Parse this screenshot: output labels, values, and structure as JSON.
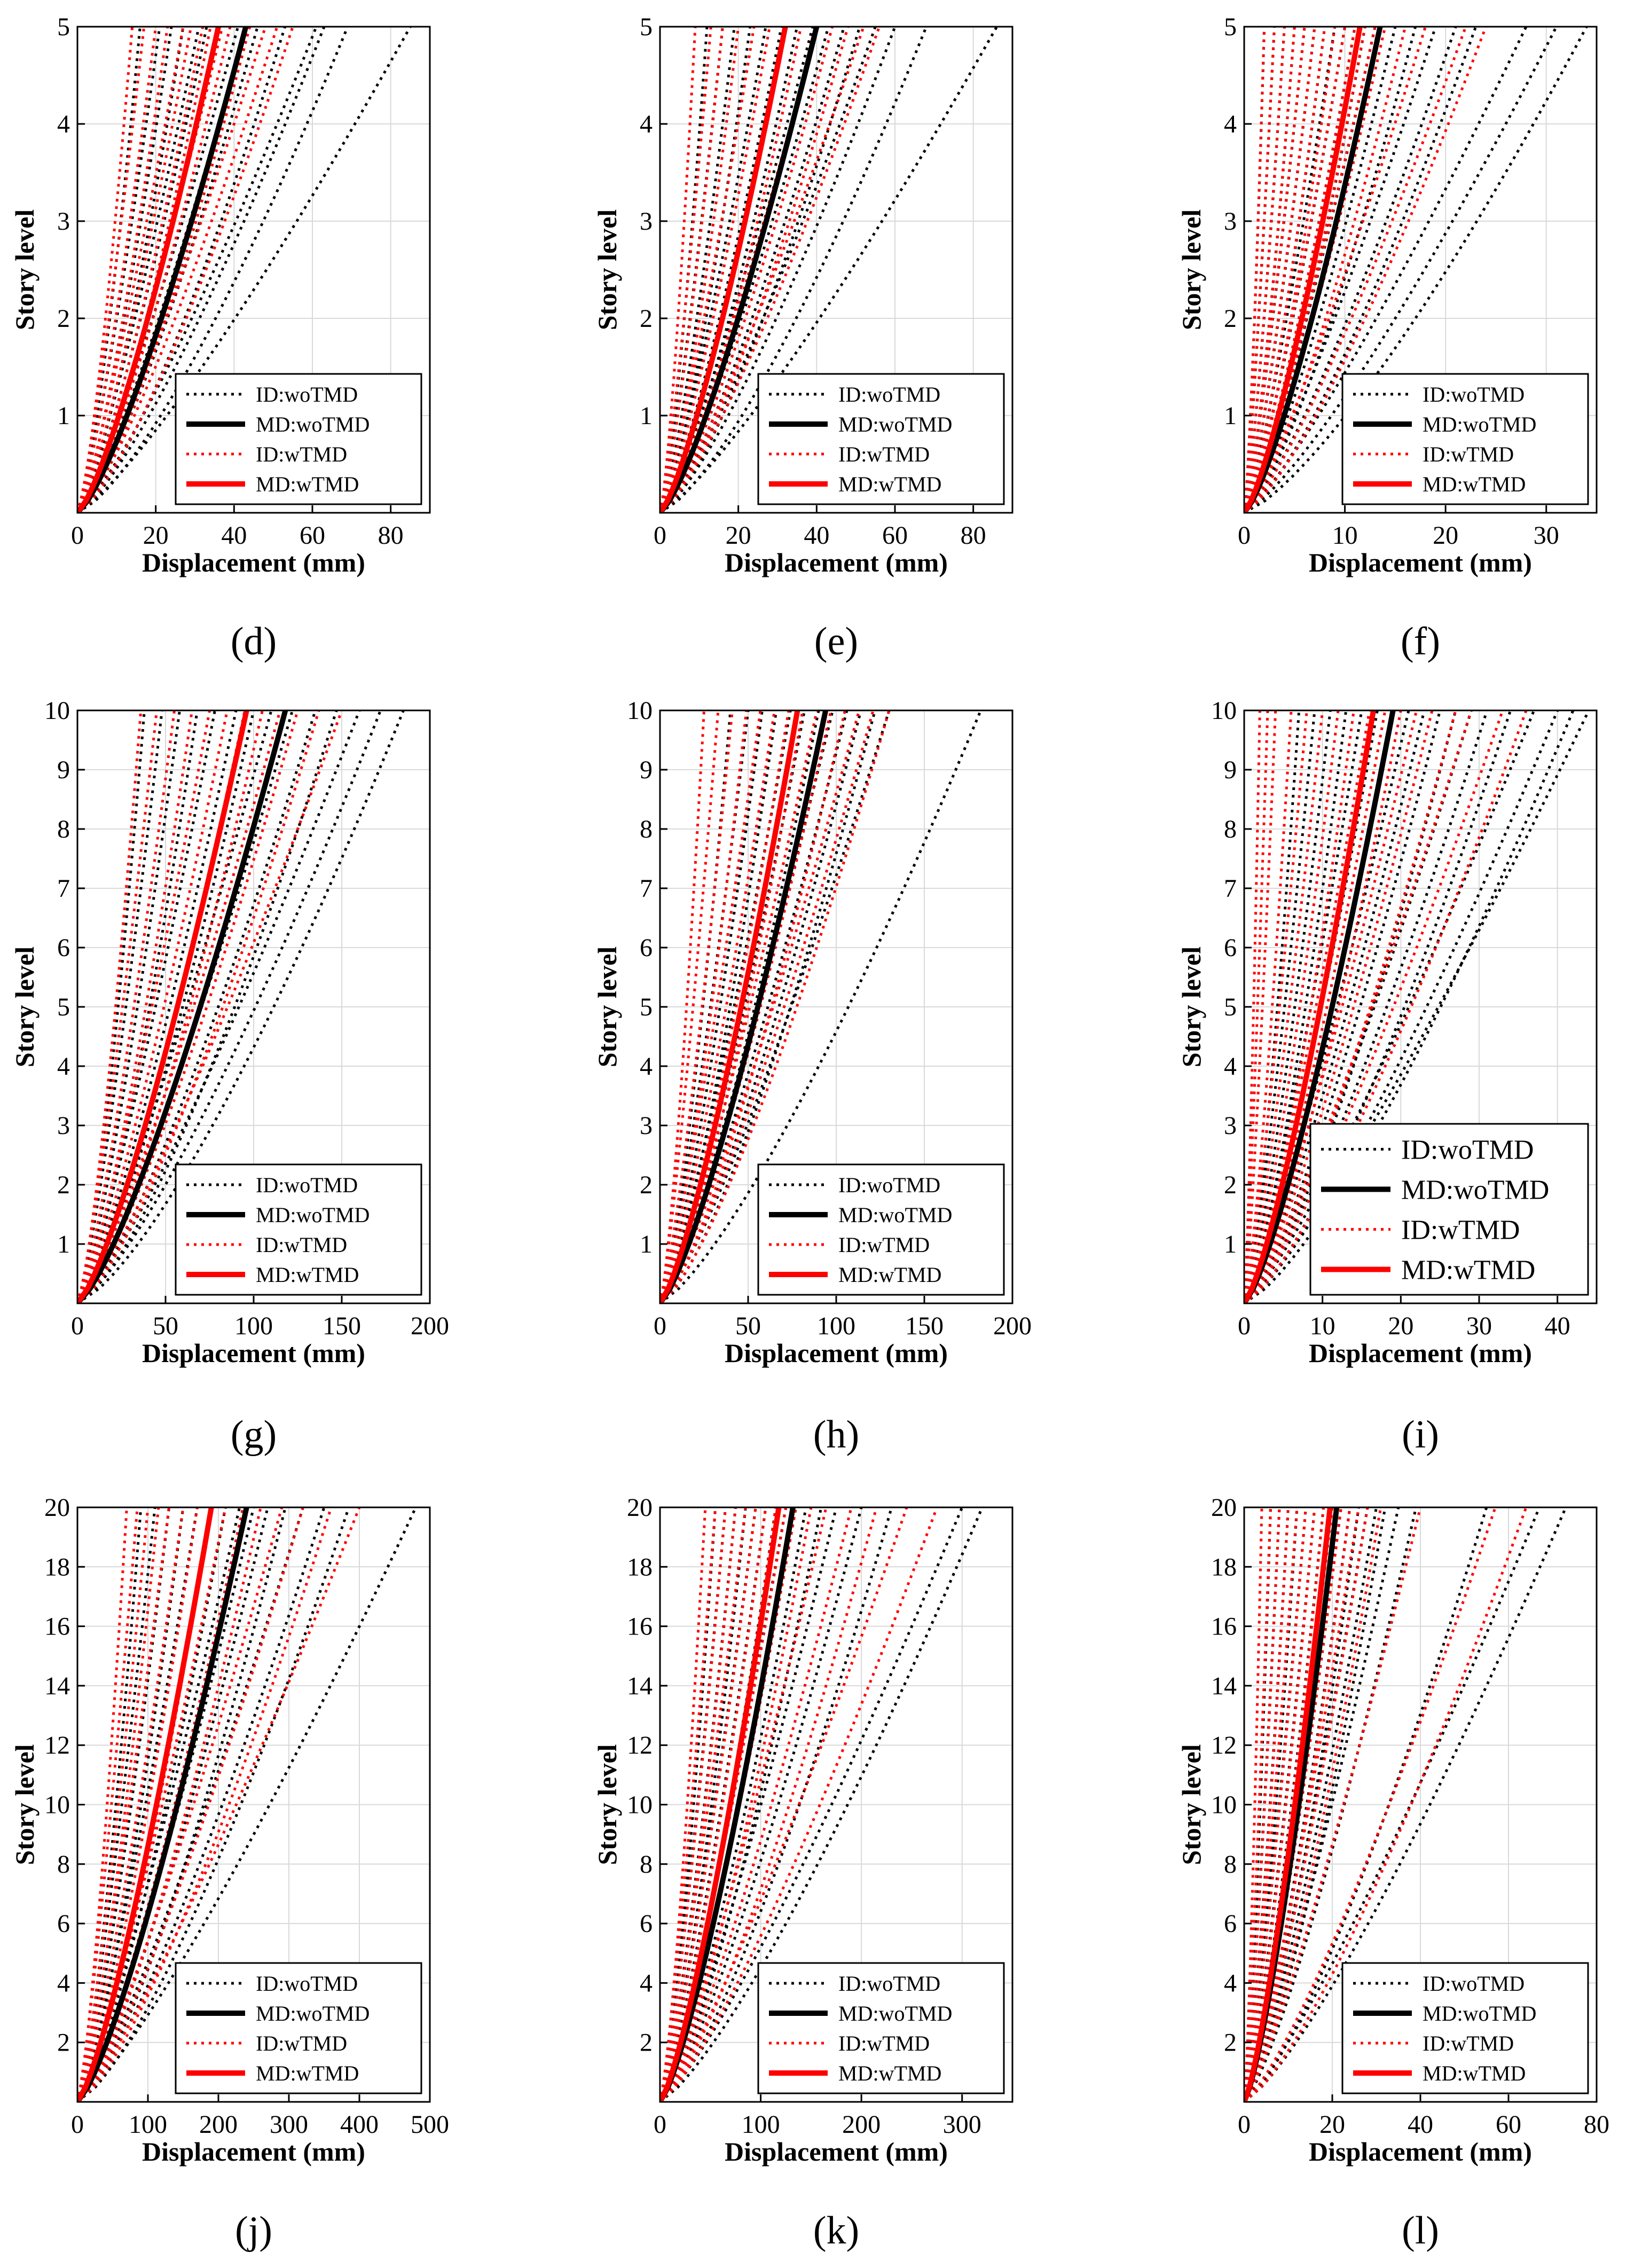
{
  "figure": {
    "panels": [
      {
        "id": "d",
        "label": "(d)",
        "ylim": [
          0,
          5
        ],
        "yticks": [
          1,
          2,
          3,
          4,
          5
        ],
        "xlim": [
          0,
          90
        ],
        "xticks": [
          0,
          20,
          40,
          60,
          80
        ],
        "id_wo": [
          16,
          21,
          24,
          27,
          31,
          33,
          36,
          41,
          43,
          46,
          53,
          61,
          63,
          69,
          85
        ],
        "id_w": [
          14,
          17,
          20,
          23,
          27,
          29,
          32,
          34,
          37,
          39,
          44,
          48,
          51,
          55
        ],
        "md_wo": 43,
        "md_w": 36,
        "big_legend": false
      },
      {
        "id": "e",
        "label": "(e)",
        "ylim": [
          0,
          5
        ],
        "yticks": [
          1,
          2,
          3,
          4,
          5
        ],
        "xlim": [
          0,
          90
        ],
        "xticks": [
          0,
          20,
          40,
          60,
          80
        ],
        "id_wo": [
          12,
          16,
          19,
          23,
          27,
          31,
          35,
          39,
          43,
          47,
          51,
          55,
          60,
          68,
          86
        ],
        "id_w": [
          9,
          13,
          16,
          20,
          24,
          28,
          32,
          36,
          40,
          44,
          48,
          52,
          56
        ],
        "md_wo": 40,
        "md_w": 32,
        "big_legend": false
      },
      {
        "id": "f",
        "label": "(f)",
        "ylim": [
          0,
          5
        ],
        "yticks": [
          1,
          2,
          3,
          4,
          5
        ],
        "xlim": [
          0,
          35
        ],
        "xticks": [
          0,
          10,
          20,
          30
        ],
        "id_wo": [
          2,
          3,
          4,
          5,
          6,
          7,
          8,
          9,
          10,
          11,
          12,
          13,
          15,
          17,
          19,
          21,
          23,
          28,
          31,
          34
        ],
        "id_w": [
          2,
          3,
          4,
          5,
          6,
          7,
          8,
          9,
          10,
          11,
          12,
          13,
          14,
          16,
          18,
          22,
          24
        ],
        "md_wo": 13.5,
        "md_w": 11.5,
        "big_legend": false
      },
      {
        "id": "g",
        "label": "(g)",
        "ylim": [
          0,
          10
        ],
        "yticks": [
          1,
          2,
          3,
          4,
          5,
          6,
          7,
          8,
          9,
          10
        ],
        "xlim": [
          0,
          200
        ],
        "xticks": [
          0,
          50,
          100,
          150,
          200
        ],
        "id_wo": [
          38,
          48,
          58,
          68,
          78,
          90,
          100,
          110,
          122,
          135,
          147,
          160,
          172,
          185
        ],
        "id_w": [
          36,
          45,
          55,
          65,
          75,
          85,
          95,
          105,
          115,
          125,
          137,
          150
        ],
        "md_wo": 118,
        "md_w": 96,
        "big_legend": false
      },
      {
        "id": "h",
        "label": "(h)",
        "ylim": [
          0,
          10
        ],
        "yticks": [
          1,
          2,
          3,
          4,
          5,
          6,
          7,
          8,
          9,
          10
        ],
        "xlim": [
          0,
          200
        ],
        "xticks": [
          0,
          50,
          100,
          150,
          200
        ],
        "id_wo": [
          40,
          50,
          58,
          66,
          74,
          82,
          90,
          98,
          106,
          114,
          122,
          130,
          182
        ],
        "id_w": [
          25,
          33,
          41,
          49,
          57,
          65,
          73,
          81,
          89,
          97,
          105,
          113,
          121,
          130
        ],
        "md_wo": 94,
        "md_w": 78,
        "big_legend": false
      },
      {
        "id": "i",
        "label": "(i)",
        "ylim": [
          0,
          10
        ],
        "yticks": [
          1,
          2,
          3,
          4,
          5,
          6,
          7,
          8,
          9,
          10
        ],
        "xlim": [
          0,
          45
        ],
        "xticks": [
          0,
          10,
          20,
          30,
          40
        ],
        "id_wo": [
          7,
          9,
          11,
          13,
          15,
          17,
          19,
          21,
          23,
          25,
          27,
          29,
          31,
          34,
          37,
          40,
          42,
          44
        ],
        "id_w": [
          2,
          3,
          4,
          6,
          8,
          10,
          12,
          14,
          16,
          18,
          20,
          22,
          24,
          27,
          29,
          33,
          36
        ],
        "md_wo": 19,
        "md_w": 16.5,
        "big_legend": true
      },
      {
        "id": "j",
        "label": "(j)",
        "ylim": [
          0,
          20
        ],
        "yticks": [
          2,
          4,
          6,
          8,
          10,
          12,
          14,
          16,
          18,
          20
        ],
        "xlim": [
          0,
          500
        ],
        "xticks": [
          0,
          100,
          200,
          300,
          400,
          500
        ],
        "id_wo": [
          90,
          110,
          130,
          150,
          170,
          190,
          210,
          230,
          250,
          270,
          295,
          320,
          350,
          385,
          480
        ],
        "id_w": [
          70,
          85,
          100,
          115,
          130,
          150,
          170,
          190,
          210,
          235,
          260,
          290,
          320,
          360,
          400
        ],
        "md_wo": 240,
        "md_w": 190,
        "big_legend": false
      },
      {
        "id": "k",
        "label": "(k)",
        "ylim": [
          0,
          20
        ],
        "yticks": [
          2,
          4,
          6,
          8,
          10,
          12,
          14,
          16,
          18,
          20
        ],
        "xlim": [
          0,
          350
        ],
        "xticks": [
          0,
          100,
          200,
          300
        ],
        "id_wo": [
          55,
          65,
          75,
          85,
          95,
          105,
          115,
          125,
          135,
          145,
          160,
          175,
          200,
          230,
          300,
          320
        ],
        "id_w": [
          45,
          55,
          65,
          75,
          85,
          95,
          105,
          115,
          125,
          135,
          150,
          165,
          190,
          215,
          245,
          275
        ],
        "md_wo": 132,
        "md_w": 118,
        "big_legend": false
      },
      {
        "id": "l",
        "label": "(l)",
        "ylim": [
          0,
          20
        ],
        "yticks": [
          2,
          4,
          6,
          8,
          10,
          12,
          14,
          16,
          18,
          20
        ],
        "xlim": [
          0,
          80
        ],
        "xticks": [
          0,
          20,
          40,
          60,
          80
        ],
        "id_wo": [
          6,
          8,
          10,
          12,
          14,
          16,
          18,
          20,
          22,
          24,
          26,
          28,
          30,
          32,
          35,
          39,
          55,
          67,
          73
        ],
        "id_w": [
          4,
          6,
          8,
          10,
          12,
          14,
          16,
          18,
          20,
          22,
          24,
          26,
          28,
          31,
          40,
          57,
          64
        ],
        "md_wo": 21,
        "md_w": 19.5,
        "big_legend": false
      }
    ],
    "xlabel": "Displacement (mm)",
    "ylabel": "Story level",
    "legend": [
      "ID:woTMD",
      "MD:woTMD",
      "ID:wTMD",
      "MD:wTMD"
    ],
    "colors": {
      "wo": "#000000",
      "w": "#ff0000",
      "grid": "#d9d9d9"
    }
  },
  "chart_data": [
    {
      "type": "line",
      "title": "(d)",
      "xlabel": "Displacement (mm)",
      "ylabel": "Story level",
      "xlim": [
        0,
        90
      ],
      "ylim": [
        0,
        5
      ],
      "series": [
        {
          "name": "ID:woTMD",
          "roof_values": [
            16,
            21,
            24,
            27,
            31,
            33,
            36,
            41,
            43,
            46,
            53,
            61,
            63,
            69,
            85
          ]
        },
        {
          "name": "MD:woTMD",
          "roof_value": 43
        },
        {
          "name": "ID:wTMD",
          "roof_values": [
            14,
            17,
            20,
            23,
            27,
            29,
            32,
            34,
            37,
            39,
            44,
            48,
            51,
            55
          ]
        },
        {
          "name": "MD:wTMD",
          "roof_value": 36
        }
      ]
    },
    {
      "type": "line",
      "title": "(e)",
      "xlabel": "Displacement (mm)",
      "ylabel": "Story level",
      "xlim": [
        0,
        90
      ],
      "ylim": [
        0,
        5
      ],
      "series": [
        {
          "name": "ID:woTMD",
          "roof_values": [
            12,
            16,
            19,
            23,
            27,
            31,
            35,
            39,
            43,
            47,
            51,
            55,
            60,
            68,
            86
          ]
        },
        {
          "name": "MD:woTMD",
          "roof_value": 40
        },
        {
          "name": "ID:wTMD",
          "roof_values": [
            9,
            13,
            16,
            20,
            24,
            28,
            32,
            36,
            40,
            44,
            48,
            52,
            56
          ]
        },
        {
          "name": "MD:wTMD",
          "roof_value": 32
        }
      ]
    },
    {
      "type": "line",
      "title": "(f)",
      "xlabel": "Displacement (mm)",
      "ylabel": "Story level",
      "xlim": [
        0,
        35
      ],
      "ylim": [
        0,
        5
      ],
      "series": [
        {
          "name": "ID:woTMD",
          "roof_values": [
            2,
            3,
            4,
            5,
            6,
            7,
            8,
            9,
            10,
            11,
            12,
            13,
            15,
            17,
            19,
            21,
            23,
            28,
            31,
            34
          ]
        },
        {
          "name": "MD:woTMD",
          "roof_value": 13.5
        },
        {
          "name": "ID:wTMD",
          "roof_values": [
            2,
            3,
            4,
            5,
            6,
            7,
            8,
            9,
            10,
            11,
            12,
            13,
            14,
            16,
            18,
            22,
            24
          ]
        },
        {
          "name": "MD:wTMD",
          "roof_value": 11.5
        }
      ]
    },
    {
      "type": "line",
      "title": "(g)",
      "xlabel": "Displacement (mm)",
      "ylabel": "Story level",
      "xlim": [
        0,
        200
      ],
      "ylim": [
        0,
        10
      ],
      "series": [
        {
          "name": "ID:woTMD",
          "roof_values": [
            38,
            48,
            58,
            68,
            78,
            90,
            100,
            110,
            122,
            135,
            147,
            160,
            172,
            185
          ]
        },
        {
          "name": "MD:woTMD",
          "roof_value": 118
        },
        {
          "name": "ID:wTMD",
          "roof_values": [
            36,
            45,
            55,
            65,
            75,
            85,
            95,
            105,
            115,
            125,
            137,
            150
          ]
        },
        {
          "name": "MD:wTMD",
          "roof_value": 96
        }
      ]
    },
    {
      "type": "line",
      "title": "(h)",
      "xlabel": "Displacement (mm)",
      "ylabel": "Story level",
      "xlim": [
        0,
        200
      ],
      "ylim": [
        0,
        10
      ],
      "series": [
        {
          "name": "ID:woTMD",
          "roof_values": [
            40,
            50,
            58,
            66,
            74,
            82,
            90,
            98,
            106,
            114,
            122,
            130,
            182
          ]
        },
        {
          "name": "MD:woTMD",
          "roof_value": 94
        },
        {
          "name": "ID:wTMD",
          "roof_values": [
            25,
            33,
            41,
            49,
            57,
            65,
            73,
            81,
            89,
            97,
            105,
            113,
            121,
            130
          ]
        },
        {
          "name": "MD:wTMD",
          "roof_value": 78
        }
      ]
    },
    {
      "type": "line",
      "title": "(i)",
      "xlabel": "Displacement (mm)",
      "ylabel": "Story level",
      "xlim": [
        0,
        45
      ],
      "ylim": [
        0,
        10
      ],
      "series": [
        {
          "name": "ID:woTMD",
          "roof_values": [
            7,
            9,
            11,
            13,
            15,
            17,
            19,
            21,
            23,
            25,
            27,
            29,
            31,
            34,
            37,
            40,
            42,
            44
          ]
        },
        {
          "name": "MD:woTMD",
          "roof_value": 19
        },
        {
          "name": "ID:wTMD",
          "roof_values": [
            2,
            3,
            4,
            6,
            8,
            10,
            12,
            14,
            16,
            18,
            20,
            22,
            24,
            27,
            29,
            33,
            36
          ]
        },
        {
          "name": "MD:wTMD",
          "roof_value": 16.5
        }
      ]
    },
    {
      "type": "line",
      "title": "(j)",
      "xlabel": "Displacement (mm)",
      "ylabel": "Story level",
      "xlim": [
        0,
        500
      ],
      "ylim": [
        0,
        20
      ],
      "series": [
        {
          "name": "ID:woTMD",
          "roof_values": [
            90,
            110,
            130,
            150,
            170,
            190,
            210,
            230,
            250,
            270,
            295,
            320,
            350,
            385,
            480
          ]
        },
        {
          "name": "MD:woTMD",
          "roof_value": 240
        },
        {
          "name": "ID:wTMD",
          "roof_values": [
            70,
            85,
            100,
            115,
            130,
            150,
            170,
            190,
            210,
            235,
            260,
            290,
            320,
            360,
            400
          ]
        },
        {
          "name": "MD:wTMD",
          "roof_value": 190
        }
      ]
    },
    {
      "type": "line",
      "title": "(k)",
      "xlabel": "Displacement (mm)",
      "ylabel": "Story level",
      "xlim": [
        0,
        350
      ],
      "ylim": [
        0,
        20
      ],
      "series": [
        {
          "name": "ID:woTMD",
          "roof_values": [
            55,
            65,
            75,
            85,
            95,
            105,
            115,
            125,
            135,
            145,
            160,
            175,
            200,
            230,
            300,
            320
          ]
        },
        {
          "name": "MD:woTMD",
          "roof_value": 132
        },
        {
          "name": "ID:wTMD",
          "roof_values": [
            45,
            55,
            65,
            75,
            85,
            95,
            105,
            115,
            125,
            135,
            150,
            165,
            190,
            215,
            245,
            275
          ]
        },
        {
          "name": "MD:wTMD",
          "roof_value": 118
        }
      ]
    },
    {
      "type": "line",
      "title": "(l)",
      "xlabel": "Displacement (mm)",
      "ylabel": "Story level",
      "xlim": [
        0,
        80
      ],
      "ylim": [
        0,
        20
      ],
      "series": [
        {
          "name": "ID:woTMD",
          "roof_values": [
            6,
            8,
            10,
            12,
            14,
            16,
            18,
            20,
            22,
            24,
            26,
            28,
            30,
            32,
            35,
            39,
            55,
            67,
            73
          ]
        },
        {
          "name": "MD:woTMD",
          "roof_value": 21
        },
        {
          "name": "ID:wTMD",
          "roof_values": [
            4,
            6,
            8,
            10,
            12,
            14,
            16,
            18,
            20,
            22,
            24,
            26,
            28,
            31,
            40,
            57,
            64
          ]
        },
        {
          "name": "MD:wTMD",
          "roof_value": 19.5
        }
      ]
    }
  ]
}
